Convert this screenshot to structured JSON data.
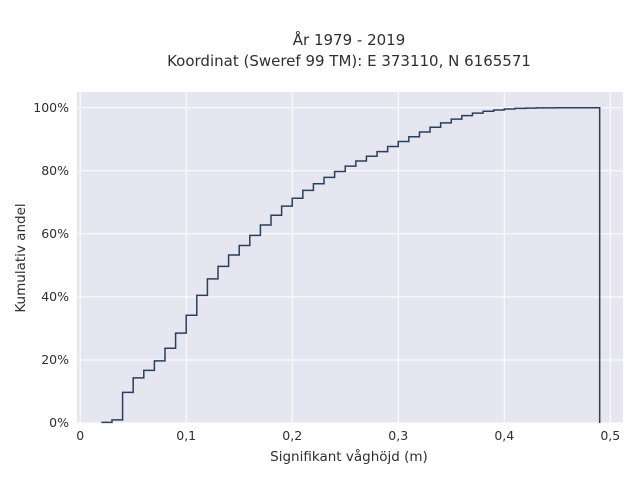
{
  "chart_data": {
    "type": "line",
    "step": true,
    "title_lines": [
      "År 1979 - 2019",
      "Koordinat (Sweref 99 TM): E 373110, N 6165571"
    ],
    "xlabel": "Signifikant våghöjd (m)",
    "ylabel": "Kumulativ andel",
    "xlim": [
      -0.003,
      0.512
    ],
    "ylim": [
      0,
      1.05
    ],
    "x_ticks": [
      {
        "value": 0,
        "label": "0"
      },
      {
        "value": 0.1,
        "label": "0,1"
      },
      {
        "value": 0.2,
        "label": "0,2"
      },
      {
        "value": 0.3,
        "label": "0,3"
      },
      {
        "value": 0.4,
        "label": "0,4"
      },
      {
        "value": 0.5,
        "label": "0,5"
      }
    ],
    "y_ticks": [
      {
        "value": 0,
        "label": "0%"
      },
      {
        "value": 0.2,
        "label": "20%"
      },
      {
        "value": 0.4,
        "label": "40%"
      },
      {
        "value": 0.6,
        "label": "60%"
      },
      {
        "value": 0.8,
        "label": "80%"
      },
      {
        "value": 1.0,
        "label": "100%"
      }
    ],
    "grid": true,
    "colors": {
      "background": "#e5e6f0",
      "grid": "#ffffff",
      "line": "#2a3f5f"
    },
    "series": [
      {
        "x": [
          0.02,
          0.03,
          0.04,
          0.05,
          0.06,
          0.07,
          0.08,
          0.09,
          0.1,
          0.11,
          0.12,
          0.13,
          0.14,
          0.15,
          0.16,
          0.17,
          0.18,
          0.19,
          0.2,
          0.21,
          0.22,
          0.23,
          0.24,
          0.25,
          0.26,
          0.27,
          0.28,
          0.29,
          0.3,
          0.31,
          0.32,
          0.33,
          0.34,
          0.35,
          0.36,
          0.37,
          0.38,
          0.39,
          0.4,
          0.41,
          0.42,
          0.43,
          0.44,
          0.45,
          0.46,
          0.47,
          0.48,
          0.49
        ],
        "y": [
          0.002,
          0.01,
          0.097,
          0.143,
          0.167,
          0.197,
          0.237,
          0.285,
          0.342,
          0.405,
          0.457,
          0.497,
          0.533,
          0.563,
          0.595,
          0.628,
          0.659,
          0.688,
          0.713,
          0.738,
          0.759,
          0.779,
          0.798,
          0.815,
          0.831,
          0.846,
          0.861,
          0.877,
          0.893,
          0.908,
          0.923,
          0.938,
          0.952,
          0.964,
          0.975,
          0.983,
          0.989,
          0.993,
          0.996,
          0.998,
          0.999,
          0.9995,
          0.9998,
          1.0,
          1.0,
          1.0,
          1.0,
          1.0
        ],
        "drop_to_zero_at": 0.49
      }
    ]
  }
}
